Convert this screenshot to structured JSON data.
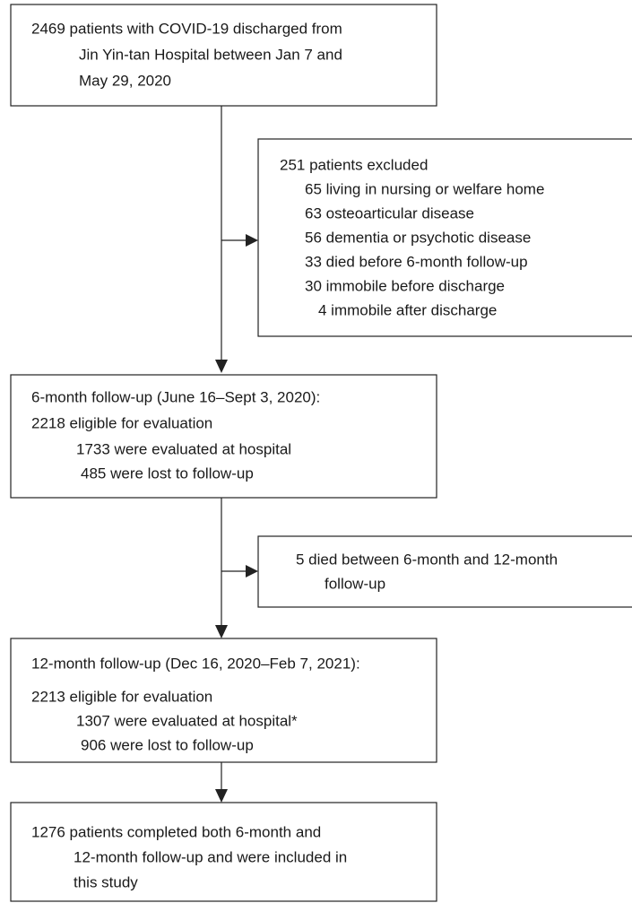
{
  "nodes": [
    {
      "lines": [
        "2469 patients with COVID-19 discharged from",
        "Jin Yin-tan Hospital between Jan 7 and",
        "May 29, 2020"
      ]
    },
    {
      "lines": [
        "251 patients excluded",
        "65 living in nursing or welfare home",
        "63 osteoarticular disease",
        "56 dementia or psychotic disease",
        "33 died before 6-month follow-up",
        "30 immobile before discharge",
        "4 immobile after discharge"
      ]
    },
    {
      "lines": [
        "6-month follow-up (June 16–Sept 3, 2020):",
        "2218 eligible for evaluation",
        "1733 were evaluated at hospital",
        "485 were lost to follow-up"
      ]
    },
    {
      "lines": [
        "5 died between 6-month and 12-month",
        "follow-up"
      ]
    },
    {
      "lines": [
        "12-month follow-up (Dec 16, 2020–Feb 7, 2021):",
        "2213 eligible for evaluation",
        "1307 were evaluated at hospital*",
        "906 were lost to follow-up"
      ]
    },
    {
      "lines": [
        "1276 patients completed both 6-month and",
        "12-month follow-up and were included in",
        "this study"
      ]
    }
  ]
}
